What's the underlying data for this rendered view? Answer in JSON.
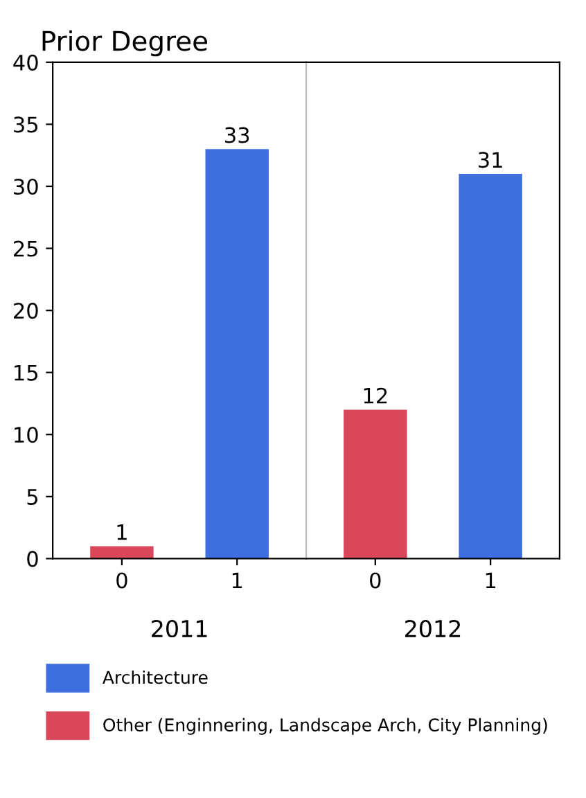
{
  "chart_data": [
    {
      "type": "bar",
      "title": "Prior Degree",
      "xlabel": "2011",
      "categories": [
        "0",
        "1"
      ],
      "series": [
        {
          "name": "Architecture",
          "color": "#3f6fdc",
          "values": [
            null,
            33
          ]
        },
        {
          "name": "Other (Enginnering, Landscape Arch, City Planning)",
          "color": "#d9485a",
          "values": [
            1,
            null
          ]
        }
      ],
      "ylim": [
        0,
        40
      ],
      "yticks": [
        0,
        5,
        10,
        15,
        20,
        25,
        30,
        35,
        40
      ],
      "data_labels": true,
      "legend": "bottom",
      "grid": false
    },
    {
      "type": "bar",
      "xlabel": "2012",
      "categories": [
        "0",
        "1"
      ],
      "series": [
        {
          "color": "#3f6fdc",
          "values": [
            null,
            31
          ]
        },
        {
          "color": "#d9485a",
          "values": [
            12,
            null
          ]
        }
      ],
      "ylim": [
        0,
        40
      ],
      "yticks": [
        0,
        5,
        10,
        15,
        20,
        25,
        30,
        35,
        40
      ],
      "data_labels": true,
      "tick_labels": "x",
      "grid": false
    }
  ]
}
